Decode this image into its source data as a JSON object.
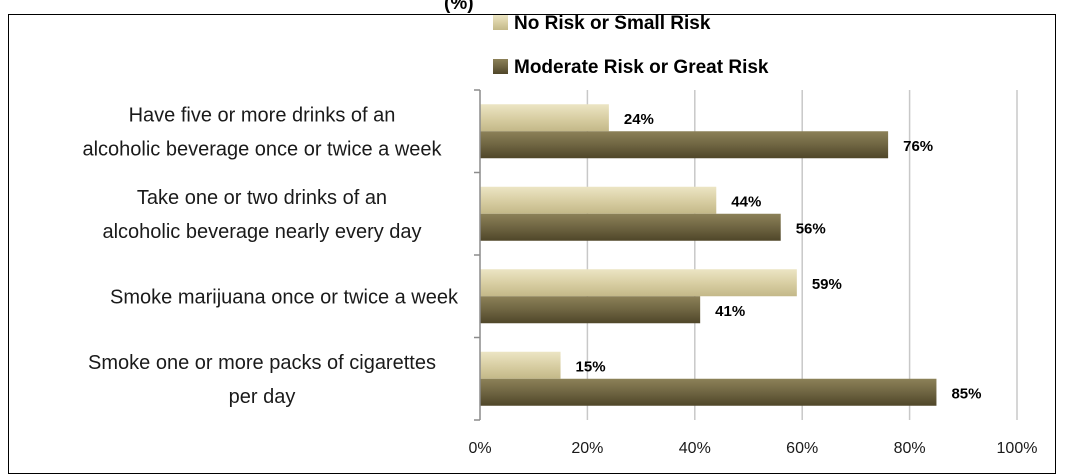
{
  "title_fragment": "(%)",
  "chart_data": {
    "type": "bar",
    "orientation": "horizontal",
    "categories": [
      [
        "Have five or more drinks of an",
        "alcoholic beverage once or twice a week"
      ],
      [
        "Take one or two drinks of an",
        "alcoholic beverage nearly every day"
      ],
      [
        "Smoke marijuana once or twice a week"
      ],
      [
        "Smoke one or more packs of cigarettes",
        "per day"
      ]
    ],
    "series": [
      {
        "name": "No Risk or Small Risk",
        "values": [
          24,
          44,
          59,
          15
        ],
        "labels": [
          "24%",
          "44%",
          "59%",
          "15%"
        ],
        "color": "#d6cca0"
      },
      {
        "name": "Moderate Risk or Great Risk",
        "values": [
          76,
          56,
          41,
          85
        ],
        "labels": [
          "76%",
          "56%",
          "41%",
          "85%"
        ],
        "color": "#6e6441"
      }
    ],
    "xlim": [
      0,
      100
    ],
    "xticks": [
      0,
      20,
      40,
      60,
      80,
      100
    ],
    "xtick_labels": [
      "0%",
      "20%",
      "40%",
      "60%",
      "80%",
      "100%"
    ],
    "grid": true,
    "legend_position": "top-center"
  }
}
